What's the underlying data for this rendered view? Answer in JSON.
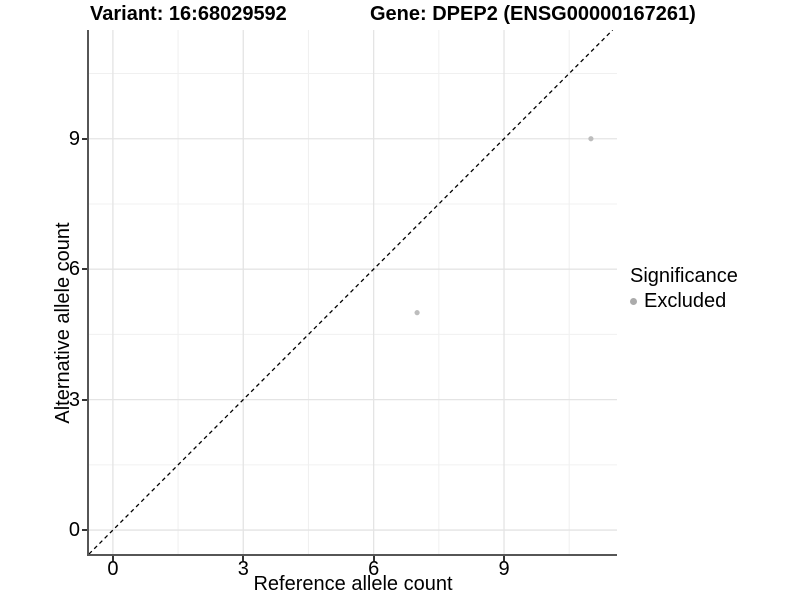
{
  "chart_data": {
    "type": "scatter",
    "titles": {
      "left": "Variant: 16:68029592",
      "right": "Gene: DPEP2 (ENSG00000167261)"
    },
    "xlabel": "Reference allele count",
    "ylabel": "Alternative allele count",
    "xlim": [
      -0.55,
      11.6
    ],
    "ylim": [
      -0.55,
      11.5
    ],
    "x_breaks": [
      0,
      3,
      6,
      9
    ],
    "y_breaks": [
      0,
      3,
      6,
      9
    ],
    "x_minor_breaks": [
      1.5,
      4.5,
      7.5,
      10.5
    ],
    "y_minor_breaks": [
      1.5,
      4.5,
      7.5,
      10.5
    ],
    "grid": true,
    "points": [
      {
        "x": 7,
        "y": 5,
        "series": "Excluded"
      },
      {
        "x": 11,
        "y": 9,
        "series": "Excluded"
      }
    ],
    "reference_line": {
      "type": "identity",
      "style": "dashed",
      "color": "#000000"
    },
    "legend": {
      "title": "Significance",
      "position": "right",
      "items": [
        {
          "label": "Excluded",
          "color": "#ababab"
        }
      ]
    },
    "colors": {
      "point": "#bdbdbd",
      "grid_major": "#e4e4e4",
      "grid_minor": "#f0f0f0",
      "axis_line": "#565656",
      "tick": "#333333",
      "text": "#000000"
    }
  }
}
